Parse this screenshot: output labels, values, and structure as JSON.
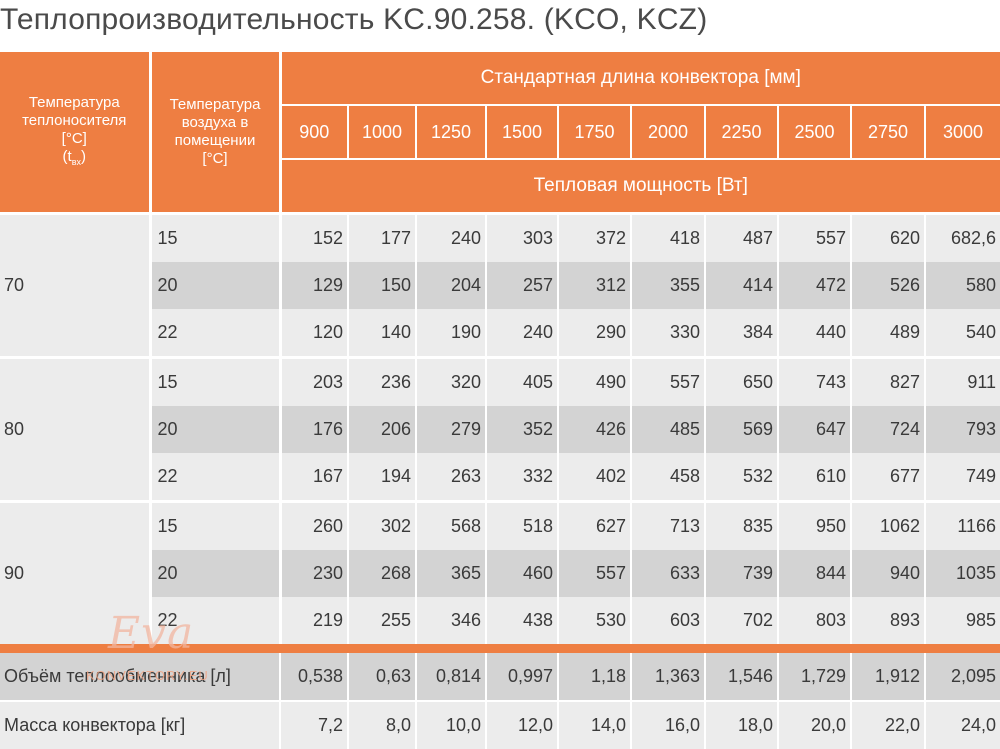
{
  "title": "Теплопроизводительность KC.90.258. (KCO, KCZ)",
  "header": {
    "col1_line1": "Температура",
    "col1_line2": "теплоносителя",
    "col1_line3": "[°C]",
    "col1_t": "(t",
    "col1_sub": "вх",
    "col1_close": ")",
    "col2_line1": "Температура",
    "col2_line2": "воздуха в",
    "col2_line3": "помещении",
    "col2_line4": "[°C]",
    "length_title": "Стандартная длина конвектора [мм]",
    "lengths": [
      "900",
      "1000",
      "1250",
      "1500",
      "1750",
      "2000",
      "2250",
      "2500",
      "2750",
      "3000"
    ],
    "power_title": "Тепловая мощность [Вт]"
  },
  "groups": [
    {
      "water_temp": "70",
      "rows": [
        {
          "air": "15",
          "values": [
            "152",
            "177",
            "240",
            "303",
            "372",
            "418",
            "487",
            "557",
            "620",
            "682,6"
          ]
        },
        {
          "air": "20",
          "values": [
            "129",
            "150",
            "204",
            "257",
            "312",
            "355",
            "414",
            "472",
            "526",
            "580"
          ]
        },
        {
          "air": "22",
          "values": [
            "120",
            "140",
            "190",
            "240",
            "290",
            "330",
            "384",
            "440",
            "489",
            "540"
          ]
        }
      ]
    },
    {
      "water_temp": "80",
      "rows": [
        {
          "air": "15",
          "values": [
            "203",
            "236",
            "320",
            "405",
            "490",
            "557",
            "650",
            "743",
            "827",
            "911"
          ]
        },
        {
          "air": "20",
          "values": [
            "176",
            "206",
            "279",
            "352",
            "426",
            "485",
            "569",
            "647",
            "724",
            "793"
          ]
        },
        {
          "air": "22",
          "values": [
            "167",
            "194",
            "263",
            "332",
            "402",
            "458",
            "532",
            "610",
            "677",
            "749"
          ]
        }
      ]
    },
    {
      "water_temp": "90",
      "rows": [
        {
          "air": "15",
          "values": [
            "260",
            "302",
            "568",
            "518",
            "627",
            "713",
            "835",
            "950",
            "1062",
            "1166"
          ]
        },
        {
          "air": "20",
          "values": [
            "230",
            "268",
            "365",
            "460",
            "557",
            "633",
            "739",
            "844",
            "940",
            "1035"
          ]
        },
        {
          "air": "22",
          "values": [
            "219",
            "255",
            "346",
            "438",
            "530",
            "603",
            "702",
            "803",
            "893",
            "985"
          ]
        }
      ]
    }
  ],
  "footer": {
    "volume_label": "Объём теплообменника [л]",
    "volume_values": [
      "0,538",
      "0,63",
      "0,814",
      "0,997",
      "1,18",
      "1,363",
      "1,546",
      "1,729",
      "1,912",
      "2,095"
    ],
    "mass_label": "Масса конвектора [кг]",
    "mass_values": [
      "7,2",
      "8,0",
      "10,0",
      "12,0",
      "14,0",
      "16,0",
      "18,0",
      "20,0",
      "22,0",
      "24,0"
    ]
  },
  "watermark": {
    "logo": "Eva",
    "text": "KONVEKTORY.EU"
  },
  "colors": {
    "accent_orange": "#ee7e42",
    "row_light": "#ececec",
    "row_dark": "#d3d3d3"
  }
}
